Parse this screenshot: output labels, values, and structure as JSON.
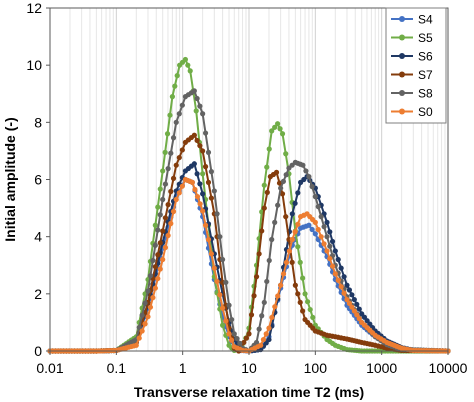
{
  "chart_data": {
    "type": "line",
    "xlabel": "Transverse relaxation time T2 (ms)",
    "ylabel": "Initial amplitude (-)",
    "xscale": "log",
    "xlim": [
      0.01,
      10000
    ],
    "ylim": [
      0,
      12
    ],
    "x_ticks": [
      0.01,
      0.1,
      1,
      10,
      100,
      1000,
      10000
    ],
    "x_tick_labels": [
      "0.01",
      "0.1",
      "1",
      "10",
      "100",
      "1000",
      "10000"
    ],
    "y_ticks": [
      0,
      2,
      4,
      6,
      8,
      10,
      12
    ],
    "y_tick_labels": [
      "0",
      "2",
      "4",
      "6",
      "8",
      "10",
      "12"
    ],
    "grid": "vertical",
    "legend_position": "top-right",
    "series": [
      {
        "name": "S4",
        "color": "#4472c4",
        "points": [
          [
            0.01,
            0
          ],
          [
            0.05,
            0
          ],
          [
            0.1,
            0.02
          ],
          [
            0.2,
            0.3
          ],
          [
            0.3,
            1.5
          ],
          [
            0.5,
            3.6
          ],
          [
            0.8,
            5.4
          ],
          [
            1.1,
            6.0
          ],
          [
            1.4,
            5.9
          ],
          [
            2,
            4.7
          ],
          [
            3,
            2.5
          ],
          [
            4,
            1.2
          ],
          [
            5,
            0.5
          ],
          [
            6,
            0.15
          ],
          [
            7,
            0.02
          ],
          [
            10,
            0
          ],
          [
            15,
            0.05
          ],
          [
            20,
            0.5
          ],
          [
            30,
            2.2
          ],
          [
            45,
            3.7
          ],
          [
            60,
            4.3
          ],
          [
            80,
            4.4
          ],
          [
            100,
            4.1
          ],
          [
            150,
            3.3
          ],
          [
            200,
            2.5
          ],
          [
            300,
            1.6
          ],
          [
            500,
            0.9
          ],
          [
            800,
            0.5
          ],
          [
            1200,
            0.3
          ],
          [
            2000,
            0.1
          ],
          [
            3000,
            0.02
          ],
          [
            10000,
            0
          ]
        ]
      },
      {
        "name": "S5",
        "color": "#70ad47",
        "points": [
          [
            0.01,
            0
          ],
          [
            0.05,
            0
          ],
          [
            0.1,
            0.02
          ],
          [
            0.2,
            0.5
          ],
          [
            0.3,
            2.5
          ],
          [
            0.5,
            6.3
          ],
          [
            0.7,
            8.9
          ],
          [
            0.9,
            10.0
          ],
          [
            1.1,
            10.2
          ],
          [
            1.3,
            9.8
          ],
          [
            1.6,
            8.4
          ],
          [
            2,
            6.2
          ],
          [
            3,
            2.6
          ],
          [
            4,
            0.9
          ],
          [
            5,
            0.2
          ],
          [
            6,
            0.02
          ],
          [
            8,
            0.1
          ],
          [
            10,
            0.8
          ],
          [
            13,
            3.0
          ],
          [
            17,
            5.8
          ],
          [
            22,
            7.7
          ],
          [
            27,
            7.95
          ],
          [
            32,
            7.6
          ],
          [
            40,
            6.2
          ],
          [
            50,
            4.2
          ],
          [
            70,
            2.0
          ],
          [
            100,
            0.9
          ],
          [
            150,
            0.4
          ],
          [
            200,
            0.2
          ],
          [
            300,
            0.05
          ],
          [
            500,
            0
          ],
          [
            10000,
            0
          ]
        ]
      },
      {
        "name": "S6",
        "color": "#1f3864",
        "points": [
          [
            0.01,
            0
          ],
          [
            0.05,
            0
          ],
          [
            0.1,
            0.02
          ],
          [
            0.2,
            0.3
          ],
          [
            0.3,
            1.6
          ],
          [
            0.5,
            3.8
          ],
          [
            0.8,
            5.6
          ],
          [
            1.1,
            6.3
          ],
          [
            1.5,
            6.55
          ],
          [
            2,
            5.5
          ],
          [
            3,
            3.4
          ],
          [
            4,
            2.0
          ],
          [
            5,
            1.0
          ],
          [
            6,
            0.4
          ],
          [
            8,
            0.05
          ],
          [
            10,
            0
          ],
          [
            15,
            0.05
          ],
          [
            20,
            0.4
          ],
          [
            30,
            2.3
          ],
          [
            45,
            4.8
          ],
          [
            60,
            5.9
          ],
          [
            75,
            6.1
          ],
          [
            100,
            5.7
          ],
          [
            150,
            4.5
          ],
          [
            200,
            3.5
          ],
          [
            300,
            2.3
          ],
          [
            500,
            1.3
          ],
          [
            800,
            0.7
          ],
          [
            1200,
            0.35
          ],
          [
            2000,
            0.12
          ],
          [
            3000,
            0.03
          ],
          [
            10000,
            0
          ]
        ]
      },
      {
        "name": "S7",
        "color": "#843c0c",
        "points": [
          [
            0.01,
            0
          ],
          [
            0.05,
            0
          ],
          [
            0.1,
            0.02
          ],
          [
            0.2,
            0.3
          ],
          [
            0.3,
            1.7
          ],
          [
            0.5,
            4.2
          ],
          [
            0.8,
            6.5
          ],
          [
            1.1,
            7.3
          ],
          [
            1.5,
            7.55
          ],
          [
            2,
            7.0
          ],
          [
            3,
            4.8
          ],
          [
            4,
            2.4
          ],
          [
            5,
            0.8
          ],
          [
            6,
            0.1
          ],
          [
            7,
            0
          ],
          [
            10,
            0.6
          ],
          [
            13,
            2.6
          ],
          [
            17,
            5.0
          ],
          [
            21,
            6.1
          ],
          [
            26,
            6.25
          ],
          [
            32,
            5.5
          ],
          [
            40,
            3.9
          ],
          [
            50,
            2.3
          ],
          [
            70,
            1.1
          ],
          [
            100,
            0.7
          ],
          [
            150,
            0.55
          ],
          [
            200,
            0.5
          ],
          [
            300,
            0.42
          ],
          [
            500,
            0.3
          ],
          [
            800,
            0.2
          ],
          [
            1200,
            0.1
          ],
          [
            2000,
            0.02
          ],
          [
            10000,
            0
          ]
        ]
      },
      {
        "name": "S8",
        "color": "#636363",
        "points": [
          [
            0.01,
            0
          ],
          [
            0.05,
            0
          ],
          [
            0.1,
            0.02
          ],
          [
            0.2,
            0.4
          ],
          [
            0.3,
            2.1
          ],
          [
            0.5,
            5.3
          ],
          [
            0.8,
            8.0
          ],
          [
            1.1,
            8.9
          ],
          [
            1.5,
            9.1
          ],
          [
            2,
            8.3
          ],
          [
            3,
            5.6
          ],
          [
            4,
            3.2
          ],
          [
            5,
            1.6
          ],
          [
            6,
            0.6
          ],
          [
            8,
            0.1
          ],
          [
            10,
            0
          ],
          [
            13,
            0.3
          ],
          [
            17,
            1.7
          ],
          [
            22,
            3.9
          ],
          [
            30,
            5.7
          ],
          [
            40,
            6.4
          ],
          [
            50,
            6.6
          ],
          [
            65,
            6.5
          ],
          [
            80,
            6.1
          ],
          [
            100,
            5.4
          ],
          [
            150,
            4.0
          ],
          [
            200,
            3.0
          ],
          [
            300,
            1.9
          ],
          [
            500,
            1.0
          ],
          [
            800,
            0.5
          ],
          [
            1200,
            0.22
          ],
          [
            2000,
            0.06
          ],
          [
            10000,
            0
          ]
        ]
      },
      {
        "name": "S0",
        "color": "#ed7d31",
        "points": [
          [
            0.01,
            0
          ],
          [
            0.05,
            0
          ],
          [
            0.1,
            0.02
          ],
          [
            0.2,
            0.2
          ],
          [
            0.3,
            1.2
          ],
          [
            0.5,
            3.2
          ],
          [
            0.8,
            5.3
          ],
          [
            1.1,
            6.0
          ],
          [
            1.4,
            5.9
          ],
          [
            2,
            4.9
          ],
          [
            3,
            2.9
          ],
          [
            4,
            1.5
          ],
          [
            5,
            0.6
          ],
          [
            6,
            0.15
          ],
          [
            8,
            0.02
          ],
          [
            10,
            0
          ],
          [
            15,
            0.2
          ],
          [
            20,
            0.8
          ],
          [
            30,
            2.3
          ],
          [
            45,
            3.9
          ],
          [
            60,
            4.7
          ],
          [
            75,
            4.8
          ],
          [
            100,
            4.5
          ],
          [
            150,
            3.5
          ],
          [
            200,
            2.7
          ],
          [
            300,
            1.8
          ],
          [
            500,
            1.0
          ],
          [
            800,
            0.55
          ],
          [
            1200,
            0.3
          ],
          [
            2000,
            0.1
          ],
          [
            3000,
            0.02
          ],
          [
            10000,
            0
          ]
        ]
      }
    ]
  }
}
